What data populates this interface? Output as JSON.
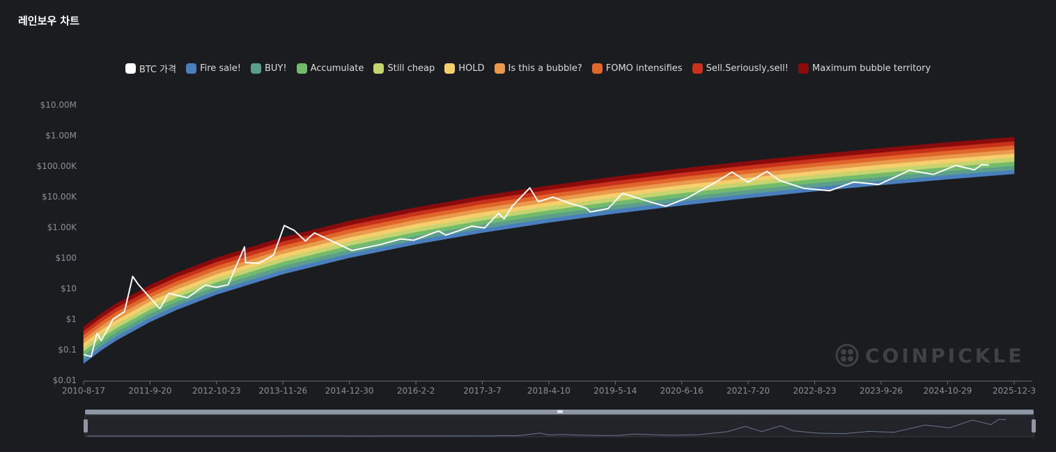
{
  "chart_data": {
    "type": "line",
    "title": "레인보우 차트",
    "watermark": "COINPICKLE",
    "log_scale": true,
    "grid": false,
    "legend_position": "top",
    "xlim": [
      "2010-8-17",
      "2025-12-3"
    ],
    "xticks": [
      "2010-8-17",
      "2011-9-20",
      "2012-10-23",
      "2013-11-26",
      "2014-12-30",
      "2016-2-2",
      "2017-3-7",
      "2018-4-10",
      "2019-5-14",
      "2020-6-16",
      "2021-7-20",
      "2022-8-23",
      "2023-9-26",
      "2024-10-29",
      "2025-12-3"
    ],
    "ylim": [
      0.01,
      10000000
    ],
    "yticks": [
      {
        "value": 0.01,
        "label": "$0.01"
      },
      {
        "value": 0.1,
        "label": "$0.1"
      },
      {
        "value": 1,
        "label": "$1"
      },
      {
        "value": 10,
        "label": "$10"
      },
      {
        "value": 100,
        "label": "$100"
      },
      {
        "value": 1000,
        "label": "$1.00K"
      },
      {
        "value": 10000,
        "label": "$10.00K"
      },
      {
        "value": 100000,
        "label": "$100.00K"
      },
      {
        "value": 1000000,
        "label": "$1.00M"
      },
      {
        "value": 10000000,
        "label": "$10.00M"
      }
    ],
    "x": [
      "2010-8-17",
      "2010-12-1",
      "2011-3-1",
      "2011-9-20",
      "2012-3-1",
      "2012-10-23",
      "2013-11-26",
      "2014-12-30",
      "2016-2-2",
      "2017-3-7",
      "2018-4-10",
      "2019-5-14",
      "2020-6-16",
      "2021-7-20",
      "2022-8-23",
      "2023-9-26",
      "2024-10-29",
      "2025-12-3"
    ],
    "series": [
      {
        "name": "BTC 가격",
        "color": "#ffffff",
        "x": [
          "2010-8-17",
          "2010-10-1",
          "2010-11-6",
          "2010-12-1",
          "2011-2-10",
          "2011-4-20",
          "2011-6-8",
          "2011-7-10",
          "2011-9-20",
          "2011-11-18",
          "2012-1-10",
          "2012-5-1",
          "2012-8-17",
          "2012-10-23",
          "2013-1-1",
          "2013-4-9",
          "2013-4-16",
          "2013-7-5",
          "2013-10-1",
          "2013-12-4",
          "2014-2-1",
          "2014-4-10",
          "2014-6-3",
          "2014-10-5",
          "2015-1-14",
          "2015-7-10",
          "2015-11-4",
          "2016-1-20",
          "2016-6-18",
          "2016-8-1",
          "2017-1-4",
          "2017-3-20",
          "2017-6-12",
          "2017-7-16",
          "2017-9-2",
          "2017-12-17",
          "2018-2-6",
          "2018-5-5",
          "2018-8-10",
          "2018-11-20",
          "2018-12-15",
          "2019-4-1",
          "2019-6-26",
          "2019-12-17",
          "2020-3-12",
          "2020-7-20",
          "2020-12-31",
          "2021-4-14",
          "2021-7-20",
          "2021-11-10",
          "2022-1-24",
          "2022-6-18",
          "2022-11-21",
          "2023-4-14",
          "2023-9-11",
          "2024-3-14",
          "2024-8-5",
          "2024-12-17",
          "2025-4-8",
          "2025-5-22",
          "2025-7-4"
        ],
        "values": [
          0.07,
          0.06,
          0.35,
          0.2,
          1.0,
          1.8,
          25,
          14,
          5,
          2.2,
          7,
          5,
          13,
          11,
          13.5,
          230,
          70,
          68,
          125,
          1150,
          800,
          360,
          660,
          320,
          175,
          280,
          420,
          380,
          760,
          560,
          1100,
          960,
          2900,
          1900,
          4900,
          19500,
          6900,
          9800,
          6200,
          4300,
          3200,
          4100,
          12900,
          6600,
          4900,
          9200,
          29000,
          64000,
          29800,
          68000,
          34000,
          19000,
          15800,
          30400,
          25100,
          73000,
          54000,
          106000,
          76000,
          111000,
          109000
        ]
      },
      {
        "name": "Fire sale!",
        "color": "#4a7fbd",
        "low": [
          0.0356,
          0.097,
          0.203,
          0.82,
          2.07,
          6.43,
          29.9,
          102,
          282,
          676,
          1450,
          2860,
          5260,
          9160,
          15200,
          24300,
          37600,
          56400
        ],
        "values": [
          0.0484,
          0.132,
          0.276,
          1.11,
          2.81,
          8.74,
          40.6,
          139,
          383,
          919,
          1970,
          3890,
          7150,
          12400,
          20700,
          33000,
          51100,
          76600
        ]
      },
      {
        "name": "BUY!",
        "color": "#5b9e8c",
        "values": [
          0.0658,
          0.179,
          0.375,
          1.52,
          3.83,
          11.9,
          55.3,
          188,
          521,
          1250,
          2680,
          5290,
          9720,
          16900,
          28100,
          44900,
          69500,
          104000
        ]
      },
      {
        "name": "Accumulate",
        "color": "#72bb6d",
        "values": [
          0.0894,
          0.244,
          0.51,
          2.06,
          5.2,
          16.2,
          75.1,
          256,
          708,
          1700,
          3640,
          7180,
          13200,
          23000,
          38200,
          61000,
          94500,
          142000
        ]
      },
      {
        "name": "Still cheap",
        "color": "#c5d46e",
        "values": [
          0.122,
          0.331,
          0.693,
          2.8,
          7.07,
          22.0,
          102,
          348,
          963,
          2310,
          4950,
          9770,
          18000,
          31300,
          51900,
          83000,
          128000,
          193000
        ]
      },
      {
        "name": "HOLD",
        "color": "#f6cf6d",
        "values": [
          0.165,
          0.45,
          0.942,
          3.81,
          9.61,
          29.8,
          139,
          473,
          1310,
          3140,
          6730,
          13300,
          24400,
          42500,
          70600,
          113000,
          175000,
          262000
        ]
      },
      {
        "name": "Is this a bubble?",
        "color": "#e99a4c",
        "values": [
          0.225,
          0.612,
          1.28,
          5.17,
          13.1,
          40.6,
          189,
          644,
          1780,
          4270,
          9150,
          18000,
          33200,
          57800,
          95900,
          153000,
          237000,
          356000
        ]
      },
      {
        "name": "FOMO intensifies",
        "color": "#e0662b",
        "values": [
          0.305,
          0.832,
          1.74,
          7.03,
          17.8,
          55.2,
          256,
          875,
          2420,
          5800,
          12400,
          24500,
          45100,
          78600,
          130000,
          208000,
          322000,
          484000
        ]
      },
      {
        "name": "Sell.Seriously,sell!",
        "color": "#c8321b",
        "values": [
          0.415,
          1.13,
          2.37,
          9.56,
          24.1,
          75.0,
          349,
          1190,
          3290,
          7880,
          16900,
          33300,
          61300,
          107000,
          177000,
          283000,
          438000,
          658000
        ]
      },
      {
        "name": "Maximum bubble territory",
        "color": "#8a0b0b",
        "values": [
          0.564,
          1.54,
          3.22,
          13.0,
          32.8,
          102,
          474,
          1620,
          4470,
          10700,
          23000,
          45300,
          83400,
          145000,
          241000,
          385000,
          596000,
          894000
        ]
      }
    ]
  }
}
